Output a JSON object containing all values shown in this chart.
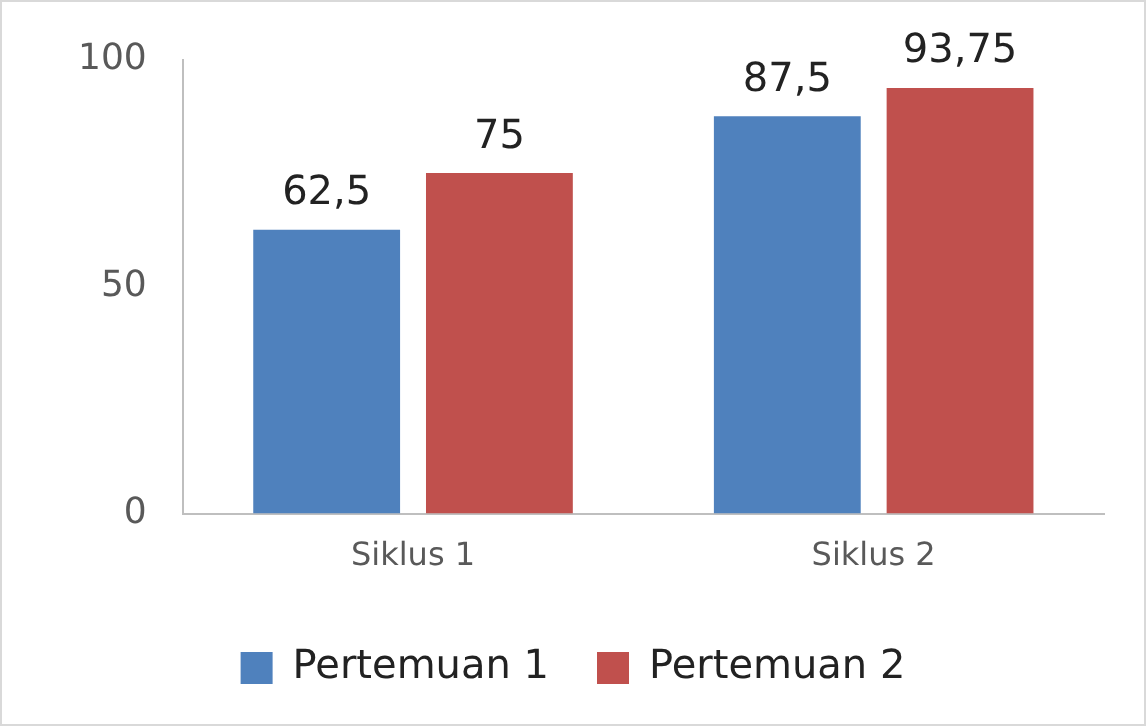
{
  "chart_data": {
    "type": "bar",
    "categories": [
      "Siklus 1",
      "Siklus 2"
    ],
    "series": [
      {
        "name": "Pertemuan 1",
        "color": "#4f81bd",
        "values": [
          62.5,
          87.5
        ],
        "value_labels": [
          "62,5",
          "87,5"
        ]
      },
      {
        "name": "Pertemuan 2",
        "color": "#c0504d",
        "values": [
          75,
          93.75
        ],
        "value_labels": [
          "75",
          "93,75"
        ]
      }
    ],
    "ylim": [
      0,
      100
    ],
    "yticks": [
      0,
      50,
      100
    ],
    "grid": false,
    "legend": "bottom"
  }
}
